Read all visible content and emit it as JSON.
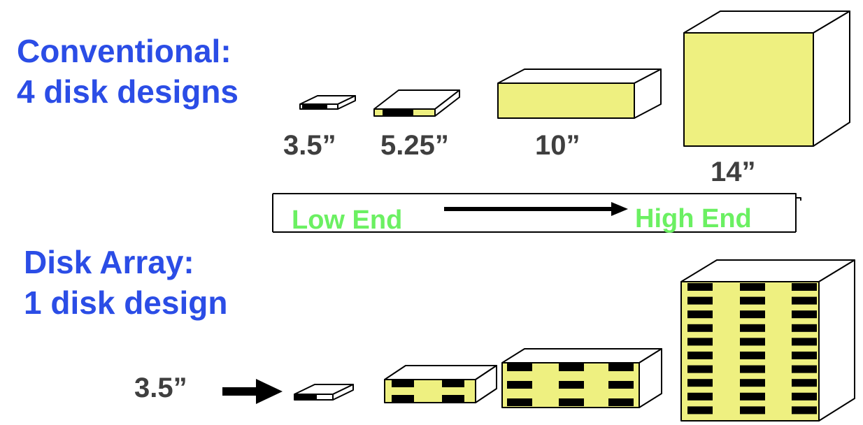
{
  "conventional": {
    "title_line1": "Conventional:",
    "title_line2": "4 disk designs"
  },
  "sizes": {
    "s35": "3.5”",
    "s525": "5.25”",
    "s10": "10”",
    "s14": "14”"
  },
  "range": {
    "low": "Low End",
    "high": "High End"
  },
  "array": {
    "title_line1": "Disk Array:",
    "title_line2": "1 disk design",
    "size": "3.5”"
  },
  "colors": {
    "title": "#2b4de6",
    "label": "#3f3f3f",
    "range_text": "#6bf062",
    "disk_face": "#eef080",
    "slot": "#000000"
  }
}
